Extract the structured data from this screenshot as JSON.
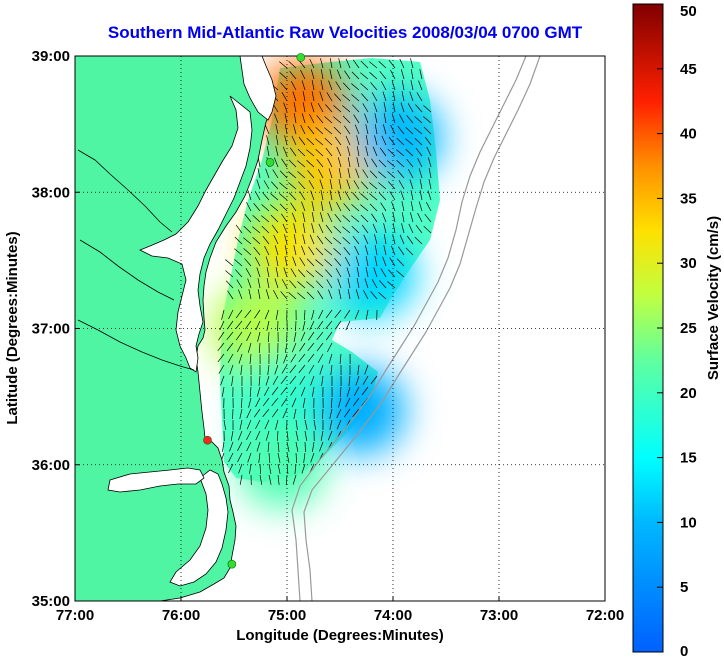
{
  "chart_data": {
    "type": "heatmap",
    "title": "Southern Mid-Atlantic Raw Velocities 2008/03/04 0700 GMT",
    "xlabel": "Longitude (Degrees:Minutes)",
    "ylabel": "Latitude (Degrees:Minutes)",
    "xlim": [
      -77,
      -72
    ],
    "ylim": [
      35,
      39
    ],
    "x_ticks": [
      {
        "value": -77,
        "label": "77:00"
      },
      {
        "value": -76,
        "label": "76:00"
      },
      {
        "value": -75,
        "label": "75:00"
      },
      {
        "value": -74,
        "label": "74:00"
      },
      {
        "value": -73,
        "label": "73:00"
      },
      {
        "value": -72,
        "label": "72:00"
      }
    ],
    "y_ticks": [
      {
        "value": 35,
        "label": "35:00"
      },
      {
        "value": 36,
        "label": "36:00"
      },
      {
        "value": 37,
        "label": "37:00"
      },
      {
        "value": 38,
        "label": "38:00"
      },
      {
        "value": 39,
        "label": "39:00"
      }
    ],
    "grid": true,
    "grid_style": "dotted",
    "colorbar": {
      "label": "Surface Velocity (cm/s)",
      "min": 0,
      "max": 50,
      "ticks": [
        0,
        5,
        10,
        15,
        20,
        25,
        30,
        35,
        40,
        45,
        50
      ],
      "colormap": "jet"
    },
    "land_color": "#4ff5a2",
    "sites": [
      {
        "lon": -74.87,
        "lat": 38.99,
        "color": "#33dd33"
      },
      {
        "lon": -75.16,
        "lat": 38.22,
        "color": "#33dd33"
      },
      {
        "lon": -75.75,
        "lat": 36.18,
        "color": "#ff2222"
      },
      {
        "lon": -75.52,
        "lat": 35.27,
        "color": "#33dd33"
      }
    ],
    "velocity_regions": [
      {
        "name": "cape-may-core",
        "lon": -74.85,
        "lat": 38.65,
        "speed": 39
      },
      {
        "name": "delaware-offshore",
        "lon": -74.6,
        "lat": 38.2,
        "speed": 34
      },
      {
        "name": "delmarva-coast",
        "lon": -74.95,
        "lat": 37.6,
        "speed": 32
      },
      {
        "name": "virginia-coast",
        "lon": -75.3,
        "lat": 37.0,
        "speed": 27
      },
      {
        "name": "outer-north",
        "lon": -73.95,
        "lat": 38.4,
        "speed": 10
      },
      {
        "name": "outer-mid",
        "lon": -74.2,
        "lat": 37.4,
        "speed": 12
      },
      {
        "name": "mouth-south",
        "lon": -75.0,
        "lat": 36.5,
        "speed": 19
      },
      {
        "name": "outer-south",
        "lon": -74.3,
        "lat": 36.4,
        "speed": 9
      },
      {
        "name": "hatteras-shelf",
        "lon": -75.05,
        "lat": 36.0,
        "speed": 21
      }
    ]
  }
}
